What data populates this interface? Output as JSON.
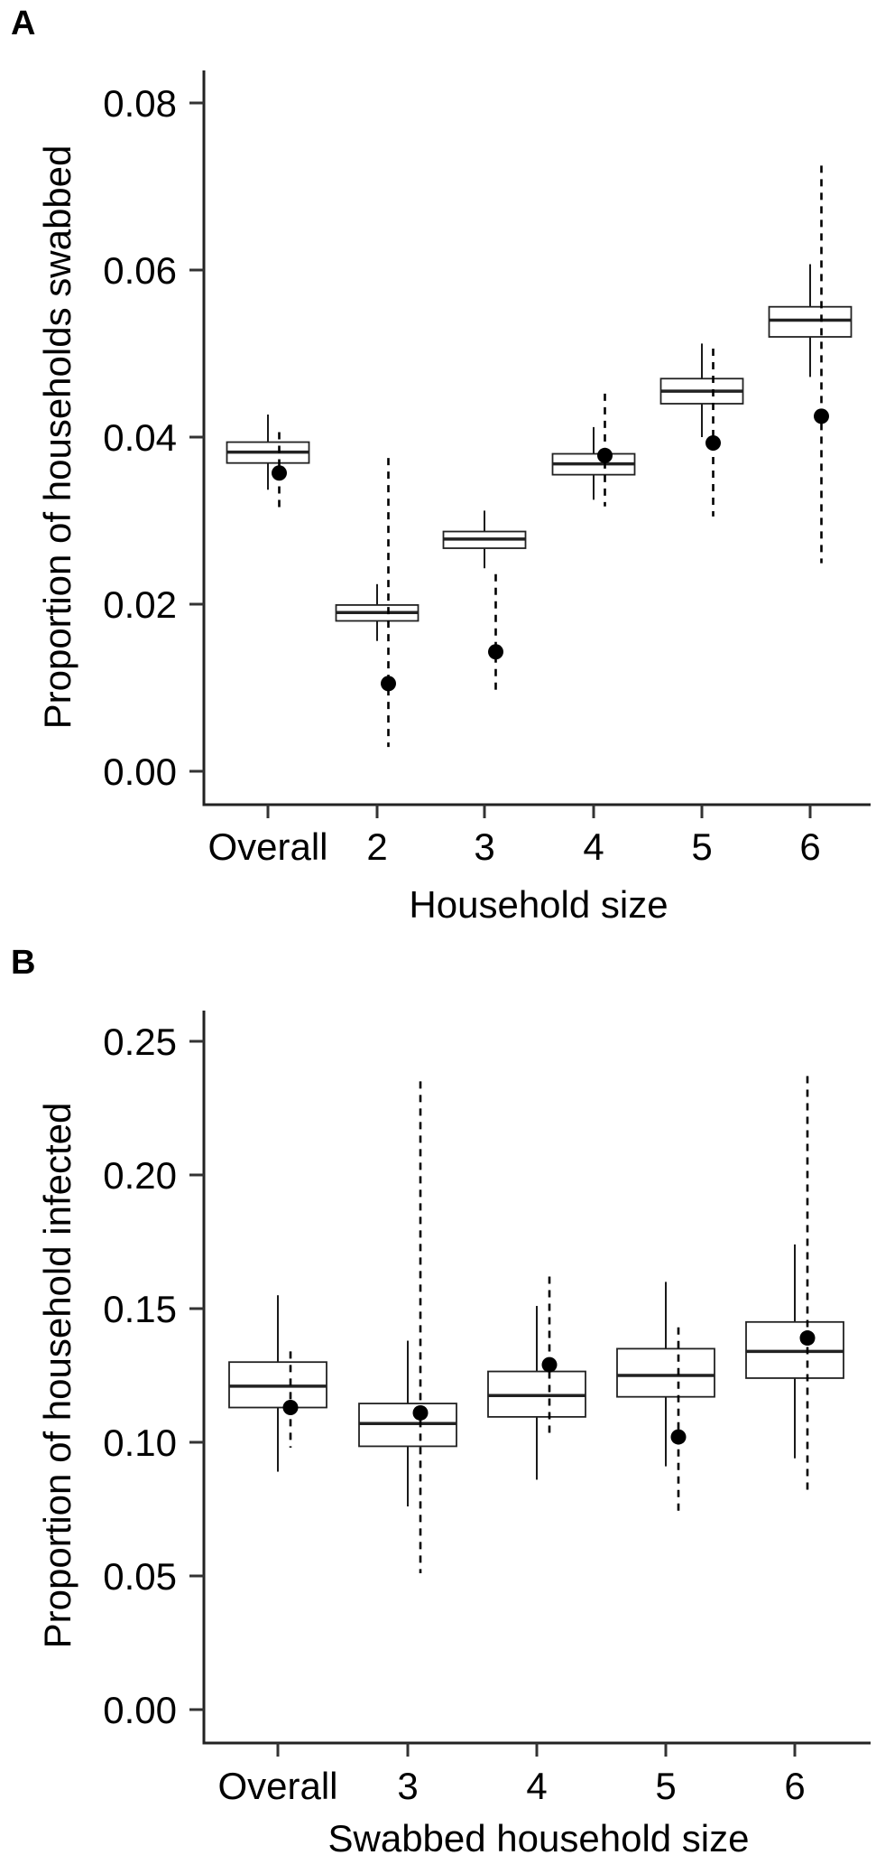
{
  "chart_data": [
    {
      "type": "box",
      "panel_label": "A",
      "xlabel": "Household size",
      "ylabel": "Proportion of households swabbed",
      "ylim": [
        0,
        0.08
      ],
      "yticks": [
        "0.00",
        "0.02",
        "0.04",
        "0.06",
        "0.08"
      ],
      "ytick_values": [
        0,
        0.02,
        0.04,
        0.06,
        0.08
      ],
      "categories": [
        "Overall",
        "2",
        "3",
        "4",
        "5",
        "6"
      ],
      "boxes": [
        {
          "whisker_low": 0.0337,
          "q1": 0.0369,
          "median": 0.0382,
          "q3": 0.0394,
          "whisker_high": 0.0427
        },
        {
          "whisker_low": 0.0156,
          "q1": 0.018,
          "median": 0.019,
          "q3": 0.0199,
          "whisker_high": 0.0224
        },
        {
          "whisker_low": 0.0243,
          "q1": 0.0267,
          "median": 0.0278,
          "q3": 0.0287,
          "whisker_high": 0.0312
        },
        {
          "whisker_low": 0.0325,
          "q1": 0.0355,
          "median": 0.0368,
          "q3": 0.038,
          "whisker_high": 0.0412
        },
        {
          "whisker_low": 0.04,
          "q1": 0.044,
          "median": 0.0455,
          "q3": 0.047,
          "whisker_high": 0.0512
        },
        {
          "whisker_low": 0.0472,
          "q1": 0.052,
          "median": 0.054,
          "q3": 0.0556,
          "whisker_high": 0.0607
        }
      ],
      "points": [
        {
          "value": 0.0357,
          "low": 0.0314,
          "high": 0.0406
        },
        {
          "value": 0.0105,
          "low": 0.0029,
          "high": 0.0375
        },
        {
          "value": 0.0143,
          "low": 0.0097,
          "high": 0.0236
        },
        {
          "value": 0.0378,
          "low": 0.0317,
          "high": 0.0452
        },
        {
          "value": 0.0393,
          "low": 0.0305,
          "high": 0.0506
        },
        {
          "value": 0.0425,
          "low": 0.0249,
          "high": 0.0725
        }
      ],
      "grid": false
    },
    {
      "type": "box",
      "panel_label": "B",
      "xlabel": "Swabbed household size",
      "ylabel": "Proportion of household infected",
      "ylim": [
        0,
        0.25
      ],
      "yticks": [
        "0.00",
        "0.05",
        "0.10",
        "0.15",
        "0.20",
        "0.25"
      ],
      "ytick_values": [
        0,
        0.05,
        0.1,
        0.15,
        0.2,
        0.25
      ],
      "categories": [
        "Overall",
        "3",
        "4",
        "5",
        "6"
      ],
      "boxes": [
        {
          "whisker_low": 0.089,
          "q1": 0.113,
          "median": 0.121,
          "q3": 0.13,
          "whisker_high": 0.155
        },
        {
          "whisker_low": 0.076,
          "q1": 0.0985,
          "median": 0.107,
          "q3": 0.1145,
          "whisker_high": 0.138
        },
        {
          "whisker_low": 0.086,
          "q1": 0.1095,
          "median": 0.1175,
          "q3": 0.1265,
          "whisker_high": 0.151
        },
        {
          "whisker_low": 0.091,
          "q1": 0.117,
          "median": 0.125,
          "q3": 0.135,
          "whisker_high": 0.16
        },
        {
          "whisker_low": 0.094,
          "q1": 0.124,
          "median": 0.134,
          "q3": 0.145,
          "whisker_high": 0.174
        }
      ],
      "points": [
        {
          "value": 0.113,
          "low": 0.098,
          "high": 0.134
        },
        {
          "value": 0.111,
          "low": 0.051,
          "high": 0.235
        },
        {
          "value": 0.129,
          "low": 0.102,
          "high": 0.162
        },
        {
          "value": 0.102,
          "low": 0.073,
          "high": 0.143
        },
        {
          "value": 0.139,
          "low": 0.08,
          "high": 0.237
        }
      ],
      "grid": false
    }
  ],
  "colors": {
    "ink": "#000000",
    "box_fill": "#ffffff",
    "axis": "#222222"
  }
}
